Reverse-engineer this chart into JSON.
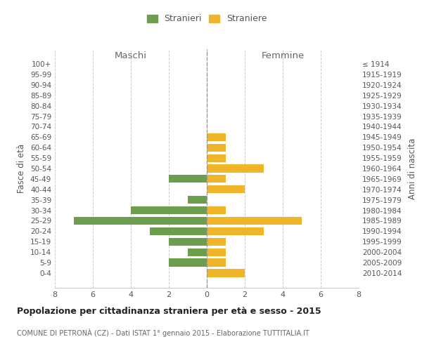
{
  "age_groups": [
    "100+",
    "95-99",
    "90-94",
    "85-89",
    "80-84",
    "75-79",
    "70-74",
    "65-69",
    "60-64",
    "55-59",
    "50-54",
    "45-49",
    "40-44",
    "35-39",
    "30-34",
    "25-29",
    "20-24",
    "15-19",
    "10-14",
    "5-9",
    "0-4"
  ],
  "birth_years": [
    "≤ 1914",
    "1915-1919",
    "1920-1924",
    "1925-1929",
    "1930-1934",
    "1935-1939",
    "1940-1944",
    "1945-1949",
    "1950-1954",
    "1955-1959",
    "1960-1964",
    "1965-1969",
    "1970-1974",
    "1975-1979",
    "1980-1984",
    "1985-1989",
    "1990-1994",
    "1995-1999",
    "2000-2004",
    "2005-2009",
    "2010-2014"
  ],
  "males": [
    0,
    0,
    0,
    0,
    0,
    0,
    0,
    0,
    0,
    0,
    0,
    2,
    0,
    1,
    4,
    7,
    3,
    2,
    1,
    2,
    0
  ],
  "females": [
    0,
    0,
    0,
    0,
    0,
    0,
    0,
    1,
    1,
    1,
    3,
    1,
    2,
    0,
    1,
    5,
    3,
    1,
    1,
    1,
    2
  ],
  "male_color": "#6d9e4f",
  "female_color": "#f0b429",
  "center_line_color": "#999999",
  "grid_color": "#cccccc",
  "background_color": "#ffffff",
  "title": "Popolazione per cittadinanza straniera per età e sesso - 2015",
  "subtitle": "COMUNE DI PETRONÀ (CZ) - Dati ISTAT 1° gennaio 2015 - Elaborazione TUTTITALIA.IT",
  "xlabel_left": "Maschi",
  "xlabel_right": "Femmine",
  "ylabel_left": "Fasce di età",
  "ylabel_right": "Anni di nascita",
  "legend_male": "Stranieri",
  "legend_female": "Straniere",
  "xlim": 8
}
